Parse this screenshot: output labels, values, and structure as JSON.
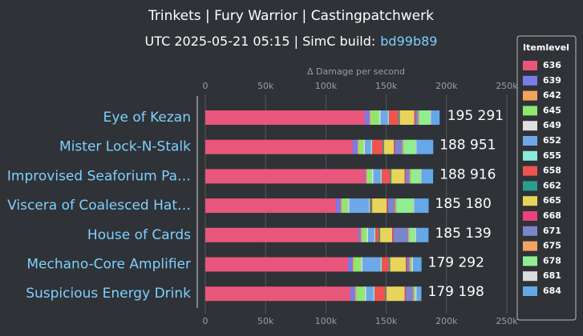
{
  "chart_data": {
    "type": "stacked-bar-horizontal",
    "title": "Trinkets | Fury Warrior | Castingpatchwerk",
    "subtitle": "UTC 2025-05-21 05:15 | SimC build:",
    "subtitle_link": "bd99b89",
    "x_label": "Δ Damage per second",
    "legend_title": "Itemlevel",
    "categories": [
      "Eye of Kezan",
      "Mister Lock-N-Stalk",
      "Improvised Seaforium Pa…",
      "Viscera of Coalesced Hat…",
      "House of Cards",
      "Mechano-Core Amplifier",
      "Suspicious Energy Drink"
    ],
    "xlim": [
      0,
      250000
    ],
    "xticks": [
      {
        "value": 0,
        "label": "0"
      },
      {
        "value": 50000,
        "label": "50k"
      },
      {
        "value": 100000,
        "label": "100k"
      },
      {
        "value": 150000,
        "label": "150k"
      },
      {
        "value": 200000,
        "label": "200k"
      },
      {
        "value": 250000,
        "label": "250k"
      }
    ],
    "grid": true,
    "totals": [
      195291,
      188951,
      188916,
      185180,
      185139,
      179292,
      179198
    ],
    "value_labels": [
      "195 291",
      "188 951",
      "188 916",
      "185 180",
      "185 139",
      "179 292",
      "179 198"
    ],
    "series": [
      {
        "name": "636",
        "color": "#e8577b",
        "values": [
          132300,
          122300,
          132300,
          108400,
          127000,
          118300,
          120300
        ]
      },
      {
        "name": "639",
        "color": "#7b7be8",
        "values": [
          4000,
          4000,
          1000,
          4000,
          2000,
          4000,
          4000
        ]
      },
      {
        "name": "642",
        "color": "#f5a35a",
        "values": [
          1000,
          1000,
          1000,
          1000,
          1000,
          1000,
          1000
        ]
      },
      {
        "name": "645",
        "color": "#8ee86e",
        "values": [
          7000,
          4000,
          4000,
          5000,
          4000,
          6000,
          7000
        ]
      },
      {
        "name": "649",
        "color": "#e0e0e0",
        "values": [
          1000,
          1000,
          1000,
          1000,
          1000,
          1000,
          1000
        ]
      },
      {
        "name": "652",
        "color": "#6fa8e8",
        "values": [
          6000,
          5000,
          6000,
          16000,
          5000,
          15000,
          6000
        ]
      },
      {
        "name": "655",
        "color": "#8de8d8",
        "values": [
          1000,
          1000,
          1000,
          1000,
          1000,
          1000,
          1000
        ]
      },
      {
        "name": "658",
        "color": "#ef5350",
        "values": [
          8000,
          9000,
          7000,
          1000,
          3000,
          6000,
          9000
        ]
      },
      {
        "name": "662",
        "color": "#2a9d8f",
        "values": [
          1000,
          1000,
          1000,
          1000,
          1000,
          1000,
          1000
        ]
      },
      {
        "name": "665",
        "color": "#e8d45a",
        "values": [
          12000,
          8000,
          11000,
          12000,
          10000,
          13000,
          15000
        ]
      },
      {
        "name": "668",
        "color": "#ec407a",
        "values": [
          1000,
          1000,
          1000,
          1000,
          1000,
          1000,
          1000
        ]
      },
      {
        "name": "671",
        "color": "#7986cb",
        "values": [
          2000,
          6000,
          3000,
          6000,
          12000,
          2000,
          6000
        ]
      },
      {
        "name": "675",
        "color": "#f4a460",
        "values": [
          1000,
          1000,
          1000,
          1000,
          1000,
          1000,
          1000
        ]
      },
      {
        "name": "678",
        "color": "#90ee90",
        "values": [
          9000,
          10000,
          8000,
          14000,
          5000,
          1000,
          1000
        ]
      },
      {
        "name": "681",
        "color": "#dcdcdc",
        "values": [
          1000,
          1000,
          1000,
          1000,
          1000,
          1000,
          1000
        ]
      },
      {
        "name": "684",
        "color": "#64a8e8",
        "values": [
          7000,
          13700,
          9600,
          11800,
          10100,
          7000,
          3900
        ]
      }
    ]
  }
}
